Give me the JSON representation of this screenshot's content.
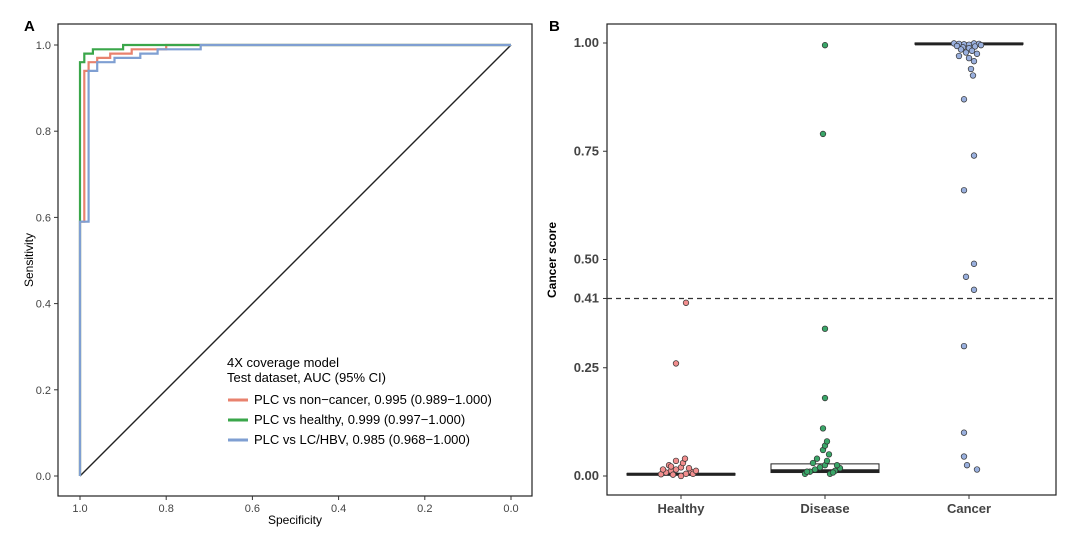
{
  "chart_data": [
    {
      "panel": "A",
      "type": "line",
      "subtype": "roc",
      "xlabel": "Specificity",
      "ylabel": "Sensitivity",
      "xlim": [
        1.0,
        0.0
      ],
      "ylim": [
        0.0,
        1.0
      ],
      "x_ticks": [
        "1.0",
        "0.8",
        "0.6",
        "0.4",
        "0.2",
        "0.0"
      ],
      "y_ticks": [
        "0.0",
        "0.2",
        "0.4",
        "0.6",
        "0.8",
        "1.0"
      ],
      "x_tick_values": [
        1.0,
        0.8,
        0.6,
        0.4,
        0.2,
        0.0
      ],
      "y_tick_values": [
        0.0,
        0.2,
        0.4,
        0.6,
        0.8,
        1.0
      ],
      "legend_title_1": "4X coverage model",
      "legend_title_2": "Test dataset, AUC (95% CI)",
      "diagonal": [
        [
          1.0,
          0.0
        ],
        [
          0.0,
          1.0
        ]
      ],
      "series": [
        {
          "name": "PLC vs non-cancer, 0.995 (0.989-1.000)",
          "label": "PLC vs non−cancer, 0.995 (0.989−1.000)",
          "color": "#e8826e",
          "points": [
            [
              1.0,
              0.0
            ],
            [
              1.0,
              0.59
            ],
            [
              0.99,
              0.59
            ],
            [
              0.99,
              0.94
            ],
            [
              0.98,
              0.94
            ],
            [
              0.98,
              0.96
            ],
            [
              0.96,
              0.96
            ],
            [
              0.96,
              0.97
            ],
            [
              0.93,
              0.97
            ],
            [
              0.93,
              0.98
            ],
            [
              0.88,
              0.98
            ],
            [
              0.88,
              0.99
            ],
            [
              0.8,
              0.99
            ],
            [
              0.8,
              1.0
            ],
            [
              0.0,
              1.0
            ]
          ]
        },
        {
          "name": "PLC vs healthy, 0.999 (0.997-1.000)",
          "label": "PLC vs healthy, 0.999 (0.997−1.000)",
          "color": "#3aa64a",
          "points": [
            [
              1.0,
              0.0
            ],
            [
              1.0,
              0.96
            ],
            [
              0.99,
              0.96
            ],
            [
              0.99,
              0.98
            ],
            [
              0.97,
              0.98
            ],
            [
              0.97,
              0.99
            ],
            [
              0.9,
              0.99
            ],
            [
              0.9,
              1.0
            ],
            [
              0.52,
              1.0
            ],
            [
              0.52,
              1.0
            ],
            [
              0.0,
              1.0
            ]
          ]
        },
        {
          "name": "PLC vs LC/HBV, 0.985 (0.968-1.000)",
          "label": "PLC vs LC/HBV, 0.985 (0.968−1.000)",
          "color": "#7f9fd2",
          "points": [
            [
              1.0,
              0.0
            ],
            [
              1.0,
              0.59
            ],
            [
              0.98,
              0.59
            ],
            [
              0.98,
              0.94
            ],
            [
              0.96,
              0.94
            ],
            [
              0.96,
              0.96
            ],
            [
              0.92,
              0.96
            ],
            [
              0.92,
              0.97
            ],
            [
              0.86,
              0.97
            ],
            [
              0.86,
              0.98
            ],
            [
              0.82,
              0.98
            ],
            [
              0.82,
              0.99
            ],
            [
              0.72,
              0.99
            ],
            [
              0.72,
              1.0
            ],
            [
              0.0,
              1.0
            ]
          ]
        }
      ]
    },
    {
      "panel": "B",
      "type": "scatter",
      "subtype": "boxplot-jitter",
      "ylabel": "Cancer score",
      "ylim": [
        0.0,
        1.0
      ],
      "y_ticks": [
        "0.00",
        "0.25",
        "0.41",
        "0.50",
        "0.75",
        "1.00"
      ],
      "y_tick_values": [
        0.0,
        0.25,
        0.41,
        0.5,
        0.75,
        1.0
      ],
      "threshold": 0.41,
      "categories": [
        "Healthy",
        "Disease",
        "Cancer"
      ],
      "groups": [
        {
          "name": "Healthy",
          "color": "#f28e8e",
          "box": {
            "q1": 0.002,
            "median": 0.004,
            "q3": 0.006
          },
          "points": [
            [
              -0.2,
              0.004
            ],
            [
              -0.15,
              0.008
            ],
            [
              -0.1,
              0.012
            ],
            [
              -0.05,
              0.015
            ],
            [
              0.0,
              0.02
            ],
            [
              0.05,
              0.005
            ],
            [
              0.1,
              0.01
            ],
            [
              -0.12,
              0.025
            ],
            [
              0.02,
              0.03
            ],
            [
              -0.05,
              0.035
            ],
            [
              0.08,
              0.018
            ],
            [
              -0.18,
              0.015
            ],
            [
              0.12,
              0.005
            ],
            [
              0.04,
              0.04
            ],
            [
              -0.08,
              0.003
            ],
            [
              0.15,
              0.012
            ],
            [
              0.0,
              0.0
            ],
            [
              -0.1,
              0.022
            ],
            [
              -0.05,
              0.26
            ],
            [
              0.05,
              0.4
            ]
          ]
        },
        {
          "name": "Disease",
          "color": "#3aa668",
          "box": {
            "q1": 0.008,
            "median": 0.012,
            "q3": 0.028
          },
          "points": [
            [
              -0.2,
              0.005
            ],
            [
              -0.15,
              0.01
            ],
            [
              -0.1,
              0.015
            ],
            [
              -0.05,
              0.02
            ],
            [
              0.0,
              0.025
            ],
            [
              0.05,
              0.005
            ],
            [
              0.1,
              0.012
            ],
            [
              0.15,
              0.018
            ],
            [
              -0.12,
              0.03
            ],
            [
              0.02,
              0.035
            ],
            [
              -0.08,
              0.04
            ],
            [
              0.08,
              0.008
            ],
            [
              0.12,
              0.025
            ],
            [
              -0.18,
              0.01
            ],
            [
              0.04,
              0.05
            ],
            [
              -0.02,
              0.06
            ],
            [
              0.0,
              0.07
            ],
            [
              0.02,
              0.08
            ],
            [
              -0.02,
              0.11
            ],
            [
              0.0,
              0.18
            ],
            [
              0.0,
              0.34
            ],
            [
              -0.02,
              0.79
            ],
            [
              0.0,
              0.995
            ]
          ]
        },
        {
          "name": "Cancer",
          "color": "#9ab0de",
          "box": {
            "q1": 0.997,
            "median": 0.998,
            "q3": 1.0
          },
          "points": [
            [
              -0.15,
              0.999
            ],
            [
              -0.1,
              0.998
            ],
            [
              -0.05,
              0.997
            ],
            [
              0.0,
              0.996
            ],
            [
              0.05,
              0.999
            ],
            [
              0.1,
              0.998
            ],
            [
              -0.12,
              0.993
            ],
            [
              -0.06,
              0.99
            ],
            [
              0.0,
              0.988
            ],
            [
              0.06,
              0.992
            ],
            [
              0.12,
              0.995
            ],
            [
              -0.08,
              0.985
            ],
            [
              0.03,
              0.982
            ],
            [
              -0.03,
              0.978
            ],
            [
              0.08,
              0.975
            ],
            [
              -0.1,
              0.97
            ],
            [
              0.0,
              0.965
            ],
            [
              0.05,
              0.958
            ],
            [
              0.02,
              0.94
            ],
            [
              0.04,
              0.925
            ],
            [
              -0.05,
              0.87
            ],
            [
              0.05,
              0.74
            ],
            [
              -0.05,
              0.66
            ],
            [
              0.05,
              0.49
            ],
            [
              -0.03,
              0.46
            ],
            [
              0.05,
              0.43
            ],
            [
              -0.05,
              0.3
            ],
            [
              -0.05,
              0.1
            ],
            [
              -0.05,
              0.045
            ],
            [
              -0.02,
              0.025
            ],
            [
              0.08,
              0.015
            ]
          ]
        }
      ]
    }
  ]
}
